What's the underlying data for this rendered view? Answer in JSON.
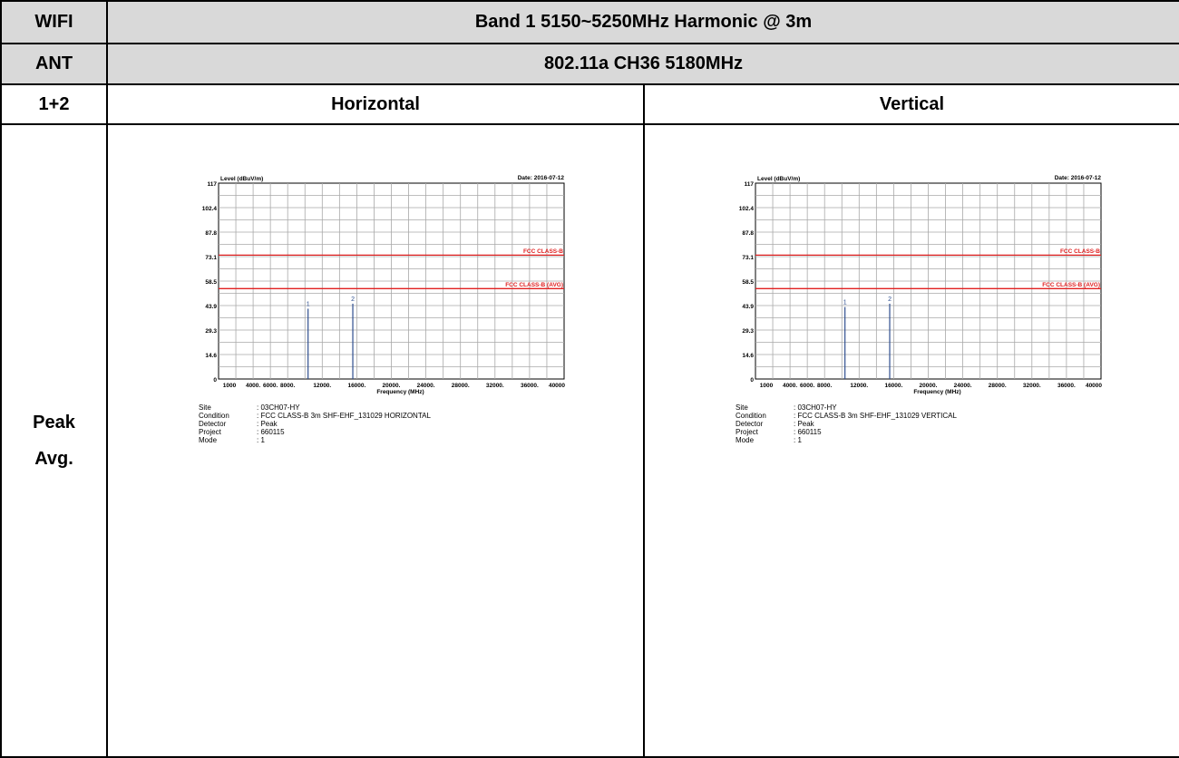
{
  "header": {
    "col1": "WIFI",
    "title": "Band 1 5150~5250MHz Harmonic @ 3m"
  },
  "ant_row": {
    "label": "ANT",
    "mode": "802.11a CH36 5180MHz"
  },
  "pol_row": {
    "label": "1+2",
    "horizontal": "Horizontal",
    "vertical": "Vertical"
  },
  "detector_labels": [
    "Peak",
    "Avg."
  ],
  "chart_common": {
    "ylabel": "Level (dBuV/m)",
    "xlabel": "Frequency (MHz)",
    "date": "Date: 2016-07-12",
    "y_ticks": [
      "117",
      "102.4",
      "87.8",
      "73.1",
      "58.5",
      "43.9",
      "29.3",
      "14.6",
      "0"
    ],
    "x_ticks": [
      "1000",
      "4000.",
      "6000.",
      "8000.",
      "12000.",
      "16000.",
      "20000.",
      "24000.",
      "28000.",
      "32000.",
      "36000.",
      "40000"
    ],
    "limit_labels": [
      "FCC CLASS-B",
      "FCC CLASS-B (AVG)"
    ],
    "meta_keys": [
      "Site",
      "Condition",
      "Detector",
      "Project",
      "Mode"
    ]
  },
  "charts": {
    "horizontal": {
      "meta_values": [
        ": 03CH07-HY",
        ": FCC CLASS-B 3m SHF-EHF_131029 HORIZONTAL",
        ": Peak",
        ": 660115",
        ": 1"
      ]
    },
    "vertical": {
      "meta_values": [
        ": 03CH07-HY",
        ": FCC CLASS-B 3m SHF-EHF_131029 VERTICAL",
        ": Peak",
        ": 660115",
        ": 1"
      ]
    }
  },
  "chart_data": [
    {
      "type": "bar",
      "ylabel": "Level (dBuV/m)",
      "xlabel": "Frequency (MHz)",
      "ylim": [
        0,
        117
      ],
      "xlim": [
        1000,
        40000
      ],
      "grid": true,
      "limits": [
        {
          "name": "FCC CLASS-B",
          "value": 74,
          "color": "#e02020"
        },
        {
          "name": "FCC CLASS-B (AVG)",
          "value": 54,
          "color": "#e02020"
        }
      ],
      "markers": [
        {
          "label": "1",
          "x": 10360,
          "y": 42
        },
        {
          "label": "2",
          "x": 15540,
          "y": 45
        }
      ]
    },
    {
      "type": "bar",
      "ylabel": "Level (dBuV/m)",
      "xlabel": "Frequency (MHz)",
      "ylim": [
        0,
        117
      ],
      "xlim": [
        1000,
        40000
      ],
      "grid": true,
      "limits": [
        {
          "name": "FCC CLASS-B",
          "value": 74,
          "color": "#e02020"
        },
        {
          "name": "FCC CLASS-B (AVG)",
          "value": 54,
          "color": "#e02020"
        }
      ],
      "markers": [
        {
          "label": "1",
          "x": 10360,
          "y": 43
        },
        {
          "label": "2",
          "x": 15540,
          "y": 45
        }
      ]
    }
  ]
}
